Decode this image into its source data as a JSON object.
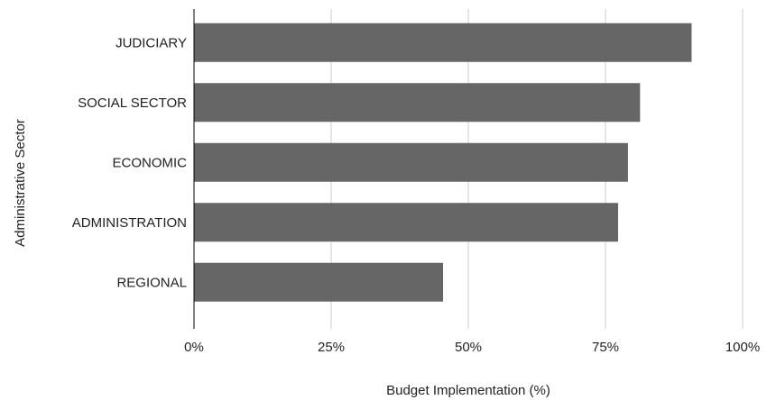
{
  "chart_data": {
    "type": "bar",
    "orientation": "horizontal",
    "categories": [
      "JUDICIARY",
      "SOCIAL SECTOR",
      "ECONOMIC",
      "ADMINISTRATION",
      "REGIONAL"
    ],
    "values": [
      90.7,
      81.3,
      79.1,
      77.3,
      45.4
    ],
    "xlabel": "Budget Implementation (%)",
    "ylabel": "Administrative Sector",
    "xlim": [
      0,
      100
    ],
    "x_ticks": [
      0,
      25,
      50,
      75,
      100
    ],
    "x_tick_labels": [
      "0%",
      "25%",
      "50%",
      "75%",
      "100%"
    ],
    "grid": "vertical",
    "bar_color": "#666666",
    "grid_color": "#cccccc",
    "axis_color": "#000000"
  }
}
